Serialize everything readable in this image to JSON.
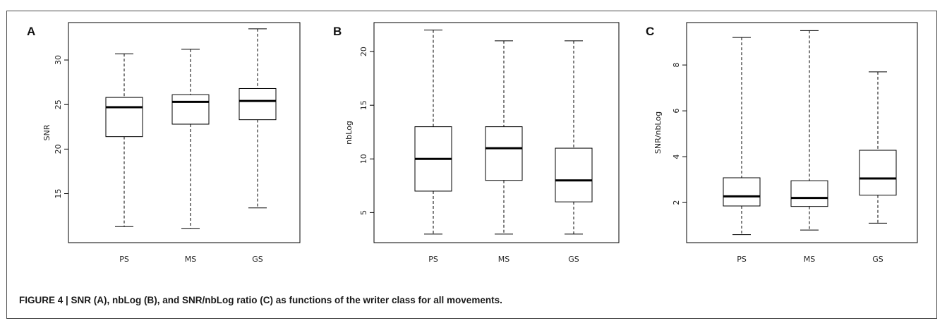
{
  "caption": "FIGURE 4 | SNR (A), nbLog (B), and SNR/nbLog ratio (C) as functions of the writer class for all movements.",
  "chart_data": [
    {
      "type": "boxplot",
      "panel": "A",
      "title": "",
      "xlabel": "",
      "ylabel": "SNR",
      "categories": [
        "PS",
        "MS",
        "GS"
      ],
      "ylim": [
        9.5,
        34.2
      ],
      "yticks": [
        15,
        20,
        25,
        30
      ],
      "boxes": [
        {
          "whisker_low": 11.3,
          "q1": 21.4,
          "median": 24.7,
          "q3": 25.8,
          "whisker_high": 30.7
        },
        {
          "whisker_low": 11.1,
          "q1": 22.8,
          "median": 25.3,
          "q3": 26.1,
          "whisker_high": 31.2
        },
        {
          "whisker_low": 13.4,
          "q1": 23.3,
          "median": 25.4,
          "q3": 26.8,
          "whisker_high": 33.5
        }
      ]
    },
    {
      "type": "boxplot",
      "panel": "B",
      "title": "",
      "xlabel": "",
      "ylabel": "nbLog",
      "categories": [
        "PS",
        "MS",
        "GS"
      ],
      "ylim": [
        2.2,
        22.7
      ],
      "yticks": [
        5,
        10,
        15,
        20
      ],
      "boxes": [
        {
          "whisker_low": 3,
          "q1": 7,
          "median": 10,
          "q3": 13,
          "whisker_high": 22
        },
        {
          "whisker_low": 3,
          "q1": 8,
          "median": 11,
          "q3": 13,
          "whisker_high": 21
        },
        {
          "whisker_low": 3,
          "q1": 6,
          "median": 8,
          "q3": 11,
          "whisker_high": 21
        }
      ]
    },
    {
      "type": "boxplot",
      "panel": "C",
      "title": "",
      "xlabel": "",
      "ylabel": "SNR/nbLog",
      "categories": [
        "PS",
        "MS",
        "GS"
      ],
      "ylim": [
        0.25,
        9.85
      ],
      "yticks": [
        2,
        4,
        6,
        8
      ],
      "boxes": [
        {
          "whisker_low": 0.6,
          "q1": 1.85,
          "median": 2.27,
          "q3": 3.08,
          "whisker_high": 9.2
        },
        {
          "whisker_low": 0.8,
          "q1": 1.83,
          "median": 2.2,
          "q3": 2.95,
          "whisker_high": 9.5
        },
        {
          "whisker_low": 1.1,
          "q1": 2.32,
          "median": 3.05,
          "q3": 4.28,
          "whisker_high": 7.7
        }
      ]
    }
  ]
}
